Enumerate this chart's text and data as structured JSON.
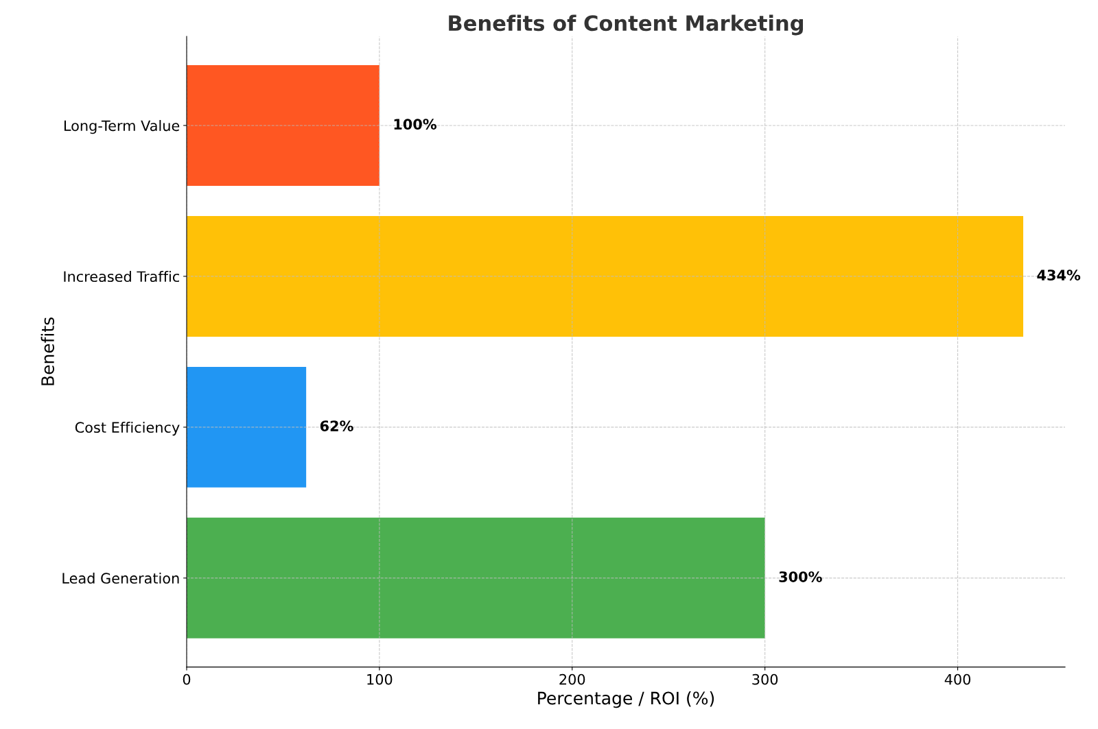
{
  "chart_data": {
    "type": "bar",
    "orientation": "horizontal",
    "title": "Benefits of Content Marketing",
    "xlabel": "Percentage / ROI (%)",
    "ylabel": "Benefits",
    "categories": [
      "Long-Term Value",
      "Increased Traffic",
      "Cost Efficiency",
      "Lead Generation"
    ],
    "values": [
      100,
      434,
      62,
      300
    ],
    "colors": [
      "#ff5722",
      "#ffc107",
      "#2196f3",
      "#4caf50"
    ],
    "value_labels": [
      "100%",
      "434%",
      "62%",
      "300%"
    ],
    "xlim": [
      0,
      455.7
    ],
    "xticks": [
      0,
      100,
      200,
      300,
      400
    ],
    "grid": true
  }
}
